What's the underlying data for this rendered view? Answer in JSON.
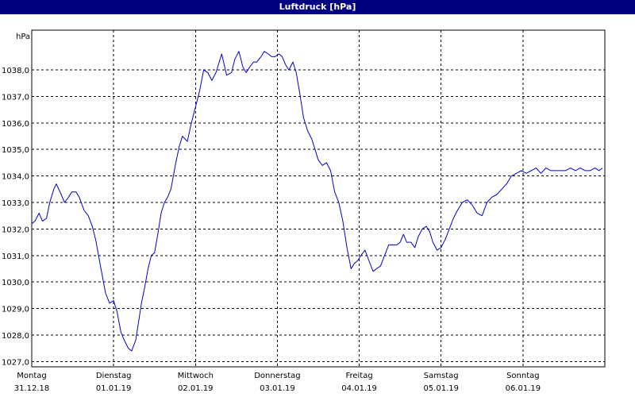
{
  "chart_data": {
    "type": "line",
    "title": "Luftdruck [hPa]",
    "ylabel": "hPa",
    "ylim": [
      1026.8,
      1039.5
    ],
    "y_ticks": [
      "1027,0",
      "1028,0",
      "1029,0",
      "1030,0",
      "1031,0",
      "1032,0",
      "1033,0",
      "1034,0",
      "1035,0",
      "1036,0",
      "1037,0",
      "1038,0"
    ],
    "y_tick_values": [
      1027,
      1028,
      1029,
      1030,
      1031,
      1032,
      1033,
      1034,
      1035,
      1036,
      1037,
      1038
    ],
    "x_range": [
      0,
      7
    ],
    "grid": true,
    "days": [
      {
        "weekday": "Montag",
        "date": "31.12.18",
        "x": 0
      },
      {
        "weekday": "Dienstag",
        "date": "01.01.19",
        "x": 1
      },
      {
        "weekday": "Mittwoch",
        "date": "02.01.19",
        "x": 2
      },
      {
        "weekday": "Donnerstag",
        "date": "03.01.19",
        "x": 3
      },
      {
        "weekday": "Freitag",
        "date": "04.01.19",
        "x": 4
      },
      {
        "weekday": "Samstag",
        "date": "05.01.19",
        "x": 5
      },
      {
        "weekday": "Sonntag",
        "date": "06.01.19",
        "x": 6
      }
    ],
    "series": [
      {
        "color": "#0000cc",
        "x": [
          0,
          0.04,
          0.09,
          0.13,
          0.18,
          0.22,
          0.27,
          0.3,
          0.36,
          0.4,
          0.45,
          0.49,
          0.54,
          0.58,
          0.64,
          0.69,
          0.74,
          0.78,
          0.84,
          0.9,
          0.95,
          1.0,
          1.04,
          1.09,
          1.13,
          1.18,
          1.22,
          1.27,
          1.3,
          1.34,
          1.38,
          1.42,
          1.46,
          1.5,
          1.54,
          1.58,
          1.62,
          1.66,
          1.7,
          1.76,
          1.8,
          1.84,
          1.9,
          1.95,
          2.0,
          2.05,
          2.1,
          2.15,
          2.2,
          2.25,
          2.32,
          2.38,
          2.44,
          2.48,
          2.53,
          2.58,
          2.62,
          2.66,
          2.71,
          2.75,
          2.8,
          2.84,
          2.89,
          2.93,
          2.97,
          3.02,
          3.06,
          3.1,
          3.14,
          3.19,
          3.23,
          3.28,
          3.32,
          3.37,
          3.42,
          3.46,
          3.5,
          3.55,
          3.6,
          3.65,
          3.7,
          3.75,
          3.8,
          3.85,
          3.9,
          3.94,
          3.98,
          4.02,
          4.07,
          4.12,
          4.17,
          4.21,
          4.26,
          4.31,
          4.36,
          4.41,
          4.46,
          4.5,
          4.54,
          4.58,
          4.63,
          4.68,
          4.72,
          4.77,
          4.82,
          4.86,
          4.9,
          4.95,
          5.0,
          5.05,
          5.1,
          5.15,
          5.2,
          5.26,
          5.32,
          5.38,
          5.44,
          5.5,
          5.56,
          5.62,
          5.68,
          5.74,
          5.8,
          5.86,
          5.92,
          5.98,
          6.04,
          6.1,
          6.16,
          6.22,
          6.28,
          6.34,
          6.4,
          6.46,
          6.52,
          6.58,
          6.64,
          6.7,
          6.76,
          6.82,
          6.88,
          6.93,
          6.97
        ],
        "values": [
          1032.2,
          1032.3,
          1032.6,
          1032.3,
          1032.4,
          1033.0,
          1033.5,
          1033.7,
          1033.3,
          1033.0,
          1033.2,
          1033.4,
          1033.4,
          1033.2,
          1032.7,
          1032.5,
          1032.1,
          1031.6,
          1030.6,
          1029.6,
          1029.2,
          1029.3,
          1028.9,
          1028.1,
          1027.8,
          1027.5,
          1027.4,
          1027.8,
          1028.4,
          1029.2,
          1029.8,
          1030.5,
          1031.0,
          1031.1,
          1031.8,
          1032.6,
          1033.0,
          1033.2,
          1033.5,
          1034.5,
          1035.1,
          1035.5,
          1035.3,
          1036.0,
          1036.6,
          1037.2,
          1038.0,
          1037.9,
          1037.6,
          1037.9,
          1038.6,
          1037.8,
          1037.9,
          1038.4,
          1038.7,
          1038.1,
          1037.9,
          1038.1,
          1038.3,
          1038.3,
          1038.5,
          1038.7,
          1038.6,
          1038.5,
          1038.5,
          1038.6,
          1038.5,
          1038.2,
          1038.0,
          1038.3,
          1037.9,
          1037.0,
          1036.2,
          1035.7,
          1035.4,
          1035.0,
          1034.6,
          1034.4,
          1034.5,
          1034.2,
          1033.4,
          1033.0,
          1032.3,
          1031.3,
          1030.5,
          1030.7,
          1030.8,
          1031.0,
          1031.2,
          1030.8,
          1030.4,
          1030.5,
          1030.6,
          1031.0,
          1031.4,
          1031.4,
          1031.4,
          1031.5,
          1031.8,
          1031.5,
          1031.5,
          1031.3,
          1031.7,
          1032.0,
          1032.1,
          1031.9,
          1031.5,
          1031.2,
          1031.3,
          1031.6,
          1032.0,
          1032.4,
          1032.7,
          1033.0,
          1033.1,
          1032.9,
          1032.6,
          1032.5,
          1033.0,
          1033.2,
          1033.3,
          1033.5,
          1033.7,
          1034.0,
          1034.1,
          1034.2,
          1034.1,
          1034.2,
          1034.3,
          1034.1,
          1034.3,
          1034.2,
          1034.2,
          1034.2,
          1034.2,
          1034.3,
          1034.2,
          1034.3,
          1034.2,
          1034.2,
          1034.3,
          1034.2,
          1034.3
        ]
      }
    ]
  }
}
